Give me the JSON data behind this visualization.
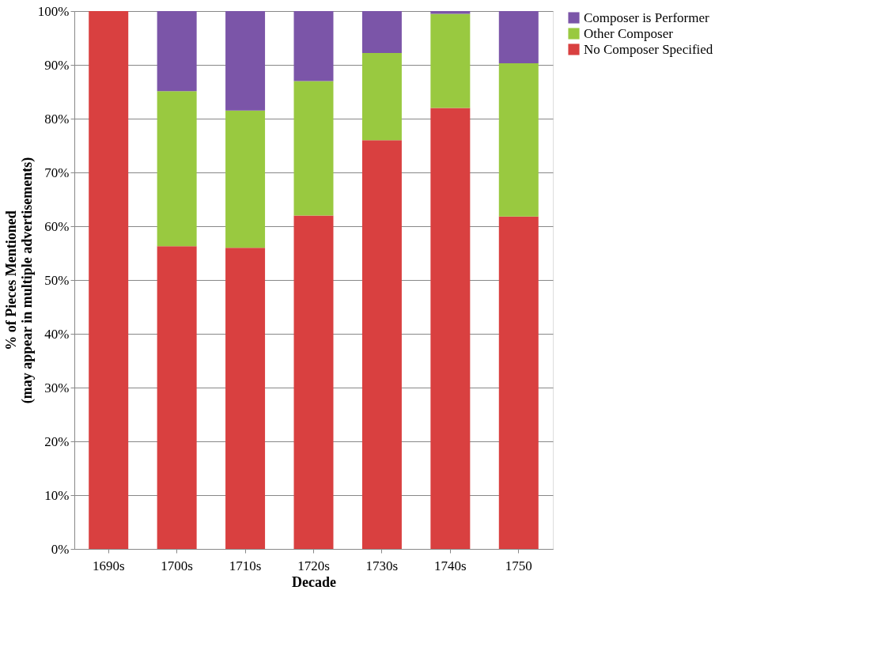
{
  "chart_data": {
    "type": "bar",
    "stacked": true,
    "xlabel": "Decade",
    "ylabel": "% of Pieces  Mentioned\n(may appear in multiple advertisements)",
    "categories": [
      "1690s",
      "1700s",
      "1710s",
      "1720s",
      "1730s",
      "1740s",
      "1750"
    ],
    "series": [
      {
        "name": "No Composer Specified",
        "color": "#d94040",
        "values": [
          100,
          56.3,
          56,
          62,
          76,
          82,
          61.8
        ]
      },
      {
        "name": "Other Composer",
        "color": "#99c940",
        "values": [
          0,
          28.8,
          25.5,
          25,
          16.2,
          17.5,
          28.5
        ]
      },
      {
        "name": "Composer is Performer",
        "color": "#7b55a8",
        "values": [
          0,
          14.9,
          18.5,
          13,
          7.8,
          0.5,
          9.7
        ]
      }
    ],
    "ylim": [
      0,
      100
    ],
    "yticks": [
      {
        "value": 0,
        "label": "0%"
      },
      {
        "value": 10,
        "label": "10%"
      },
      {
        "value": 20,
        "label": "20%"
      },
      {
        "value": 30,
        "label": "30%"
      },
      {
        "value": 40,
        "label": "40%"
      },
      {
        "value": 50,
        "label": "50%"
      },
      {
        "value": 60,
        "label": "60%"
      },
      {
        "value": 70,
        "label": "70%"
      },
      {
        "value": 80,
        "label": "80%"
      },
      {
        "value": 90,
        "label": "90%"
      },
      {
        "value": 100,
        "label": "100%"
      }
    ],
    "grid": "y",
    "legend": "right"
  }
}
